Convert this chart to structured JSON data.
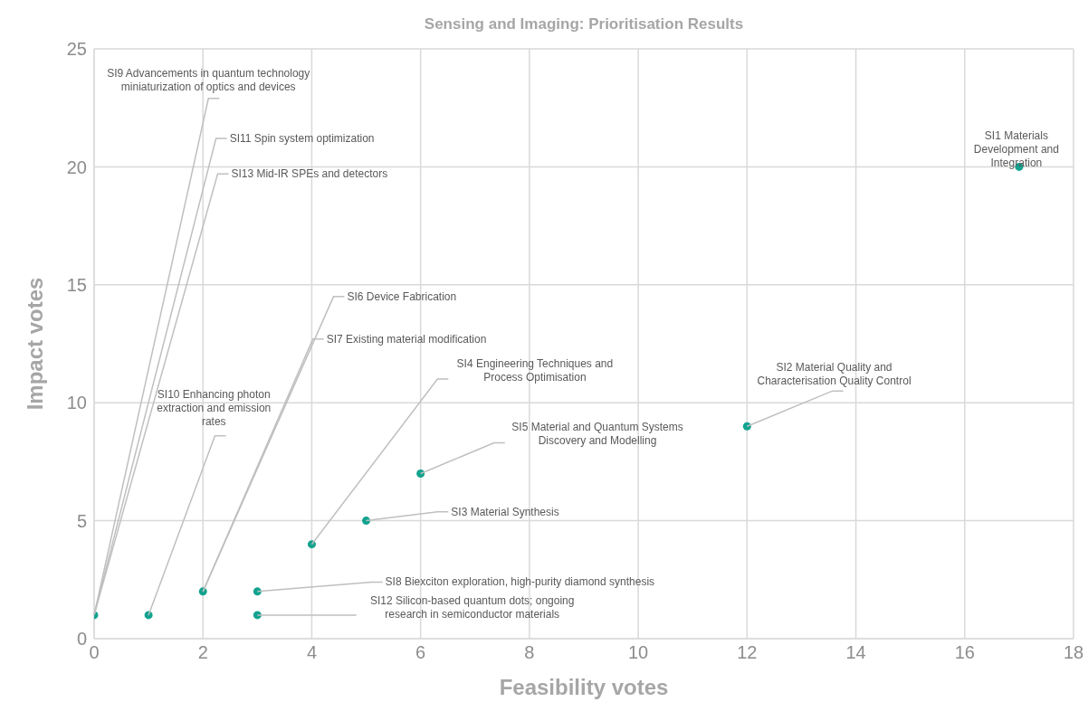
{
  "chart_data": {
    "type": "scatter",
    "title": "Sensing and Imaging: Prioritisation Results",
    "xlabel": "Feasibility votes",
    "ylabel": "Impact votes",
    "x": [
      0,
      1,
      2,
      3,
      3,
      4,
      5,
      6,
      12,
      17
    ],
    "series": [
      {
        "color": "#12a38f",
        "values": [
          1,
          1,
          2,
          2,
          1,
          4,
          5,
          7,
          9,
          20
        ]
      }
    ],
    "xlim": [
      0,
      18
    ],
    "xticks": [
      0,
      2,
      4,
      6,
      8,
      10,
      12,
      14,
      16,
      18
    ],
    "ylim": [
      0,
      25
    ],
    "yticks": [
      0,
      5,
      10,
      15,
      20,
      25
    ],
    "grid": true,
    "marker": "circle",
    "annotations": [
      {
        "text": "SI1 Materials Development and Integration",
        "x": 17,
        "y": 20
      },
      {
        "text": "SI2 Material Quality and Characterisation Quality Control",
        "x": 12,
        "y": 9
      },
      {
        "text": "SI3 Material Synthesis",
        "x": 5,
        "y": 5
      },
      {
        "text": "SI4 Engineering Techniques and Process Optimisation",
        "x": 4,
        "y": 4
      },
      {
        "text": "SI5 Material and Quantum Systems Discovery and Modelling",
        "x": 6,
        "y": 7
      },
      {
        "text": "SI6 Device Fabrication",
        "x": 2,
        "y": 2
      },
      {
        "text": "SI7 Existing material modification",
        "x": 2,
        "y": 2
      },
      {
        "text": "SI8 Biexciton exploration, high-purity diamond synthesis",
        "x": 3,
        "y": 2
      },
      {
        "text": "SI9 Advancements in quantum technology miniaturization of optics and devices",
        "x": 0,
        "y": 1
      },
      {
        "text": "SI10 Enhancing photon extraction and emission rates",
        "x": 1,
        "y": 1
      },
      {
        "text": "SI11 Spin system optimization",
        "x": 0,
        "y": 1
      },
      {
        "text": "SI12 Silicon-based quantum dots; ongoing research in semiconductor materials",
        "x": 3,
        "y": 1
      },
      {
        "text": "SI13 Mid-IR SPEs and detectors",
        "x": 0,
        "y": 1
      }
    ]
  }
}
